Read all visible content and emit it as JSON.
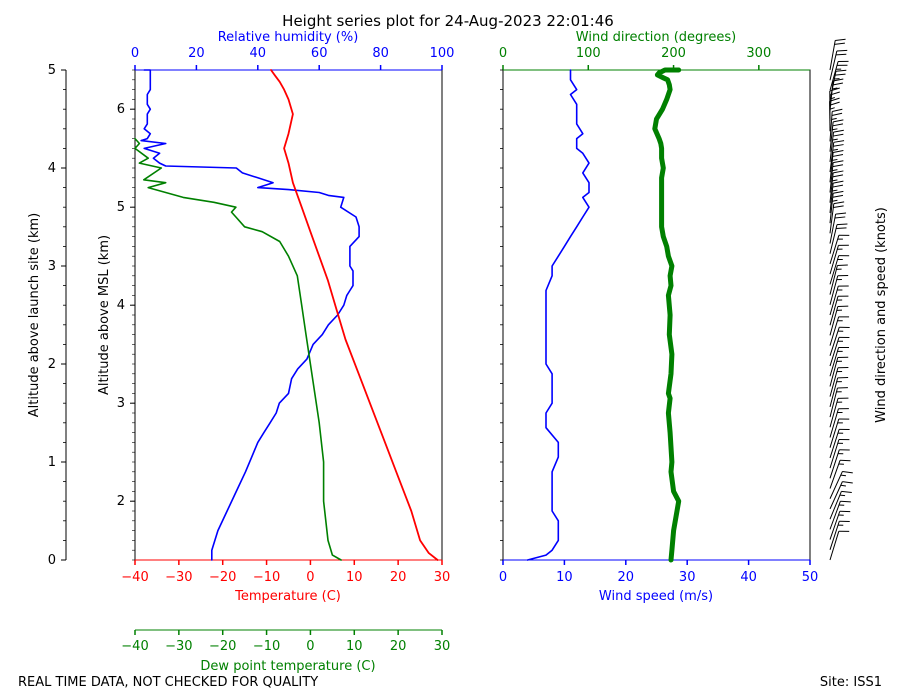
{
  "title": "Height series plot for 24-Aug-2023 22:01:46",
  "footer": {
    "left": "REAL TIME DATA, NOT CHECKED FOR QUALITY",
    "right": "Site: ISS1"
  },
  "colors": {
    "temperature": "#ff0000",
    "dewpoint": "#008000",
    "humidity": "#0000ff",
    "wind_speed": "#0000ff",
    "wind_direction": "#008000",
    "barbs": "#000000"
  },
  "chart_data": [
    {
      "type": "line",
      "panel": "thermo",
      "axes": {
        "left_outer": {
          "label": "Altitude above launch site (km)",
          "range": [
            0,
            5
          ],
          "ticks": [
            "0",
            "1",
            "2",
            "3",
            "4",
            "5"
          ]
        },
        "left_inner": {
          "label": "Altitude above MSL (km)",
          "ticks": [
            "2",
            "3",
            "4",
            "5",
            "6"
          ],
          "tick_values": [
            2,
            3,
            4,
            5,
            6
          ],
          "offset_km": 1.4
        },
        "bottom": {
          "label": "Temperature (C)",
          "range": [
            -40,
            30
          ],
          "ticks": [
            "−40",
            "−30",
            "−20",
            "−10",
            "0",
            "10",
            "20",
            "30"
          ]
        },
        "bottom2": {
          "label": "Dew point temperature (C)",
          "range": [
            -40,
            30
          ],
          "ticks": [
            "−40",
            "−30",
            "−20",
            "−10",
            "0",
            "10",
            "20",
            "30"
          ]
        },
        "top": {
          "label": "Relative humidity (%)",
          "range": [
            0,
            100
          ],
          "ticks": [
            "0",
            "20",
            "40",
            "60",
            "80",
            "100"
          ]
        }
      },
      "series": [
        {
          "key": "temperature",
          "x": [
            29,
            27,
            25,
            23,
            20,
            17,
            14,
            11,
            8,
            6,
            4,
            2,
            0,
            -2,
            -4,
            -5,
            -6,
            -5,
            -4,
            -5,
            -6,
            -7,
            -8,
            -9
          ],
          "y": [
            0,
            0.07,
            0.2,
            0.5,
            0.85,
            1.2,
            1.55,
            1.9,
            2.25,
            2.55,
            2.85,
            3.1,
            3.35,
            3.6,
            3.85,
            4.05,
            4.2,
            4.35,
            4.55,
            4.7,
            4.8,
            4.88,
            4.94,
            5.0
          ]
        },
        {
          "key": "dewpoint",
          "x": [
            7,
            5,
            4,
            3,
            3,
            2,
            1,
            0,
            -1,
            -2,
            -3,
            -5,
            -7,
            -11,
            -15,
            -17,
            -18,
            -17,
            -22,
            -29,
            -37,
            -33,
            -38,
            -34,
            -39,
            -37,
            -40,
            -39,
            -40
          ],
          "y": [
            0,
            0.05,
            0.2,
            0.6,
            1.0,
            1.4,
            1.7,
            2.0,
            2.3,
            2.6,
            2.9,
            3.1,
            3.25,
            3.35,
            3.4,
            3.5,
            3.55,
            3.6,
            3.65,
            3.7,
            3.8,
            3.85,
            3.88,
            4.0,
            4.05,
            4.1,
            4.2,
            4.25,
            4.3
          ]
        },
        {
          "key": "humidity",
          "x": [
            25,
            25,
            27,
            30,
            33,
            36,
            38,
            40,
            42,
            44,
            46,
            47,
            50,
            51,
            53,
            56,
            58,
            61,
            63,
            66,
            68,
            69,
            70,
            71,
            71,
            71,
            70,
            70,
            70,
            73,
            73,
            72,
            67,
            68,
            63,
            60,
            50,
            40,
            45,
            40,
            35,
            33,
            10,
            8,
            6,
            8,
            3,
            10,
            2,
            4,
            5,
            3,
            4,
            4,
            4,
            5,
            4,
            4,
            4,
            5,
            5,
            5,
            5,
            5,
            4,
            4,
            3,
            4,
            5,
            5,
            5,
            5,
            4,
            4,
            4,
            4
          ],
          "y": [
            0,
            0.1,
            0.3,
            0.5,
            0.7,
            0.9,
            1.05,
            1.2,
            1.3,
            1.4,
            1.5,
            1.6,
            1.7,
            1.85,
            1.95,
            2.05,
            2.2,
            2.3,
            2.4,
            2.5,
            2.6,
            2.7,
            2.75,
            2.8,
            2.9,
            2.95,
            3.0,
            3.1,
            3.2,
            3.3,
            3.4,
            3.5,
            3.6,
            3.7,
            3.72,
            3.75,
            3.78,
            3.8,
            3.85,
            3.9,
            3.95,
            4.0,
            4.02,
            4.05,
            4.1,
            4.15,
            4.2,
            4.25,
            4.28,
            4.3,
            4.35,
            4.4,
            4.45,
            4.5,
            4.55,
            4.6,
            4.65,
            4.7,
            4.75,
            4.8,
            4.85,
            4.9,
            4.95,
            5.0,
            5.0,
            5.0,
            5.0,
            5.0,
            5.0,
            5.0,
            5.0,
            5.0,
            5.0,
            5.0,
            5.0,
            5.0
          ]
        }
      ]
    },
    {
      "type": "line",
      "panel": "wind",
      "axes": {
        "left": {
          "range": [
            0,
            5
          ]
        },
        "bottom": {
          "label": "Wind speed (m/s)",
          "range": [
            0,
            50
          ],
          "ticks": [
            "0",
            "10",
            "20",
            "30",
            "40",
            "50"
          ]
        },
        "top": {
          "label": "Wind direction (degrees)",
          "range": [
            0,
            360
          ],
          "ticks": [
            "0",
            "100",
            "200",
            "300"
          ]
        },
        "right": {
          "label": "Wind direction and speed (knots)"
        }
      },
      "series": [
        {
          "key": "wind_speed",
          "x": [
            4,
            7,
            8,
            9,
            9,
            9,
            8,
            8,
            8,
            8,
            9,
            9,
            7,
            7,
            8,
            8,
            8,
            7,
            7,
            7,
            7,
            7,
            7,
            7,
            8,
            8,
            9,
            10,
            11,
            12,
            13,
            14,
            13,
            14,
            14,
            13,
            14,
            13,
            12,
            12,
            13,
            12,
            12,
            12,
            12,
            11,
            12,
            11,
            11,
            11
          ],
          "y": [
            0,
            0.05,
            0.1,
            0.2,
            0.3,
            0.4,
            0.5,
            0.6,
            0.75,
            0.9,
            1.05,
            1.2,
            1.35,
            1.5,
            1.6,
            1.75,
            1.9,
            2.0,
            2.1,
            2.25,
            2.4,
            2.5,
            2.6,
            2.75,
            2.9,
            3.0,
            3.1,
            3.2,
            3.3,
            3.4,
            3.5,
            3.6,
            3.7,
            3.75,
            3.85,
            3.95,
            4.05,
            4.15,
            4.2,
            4.3,
            4.35,
            4.45,
            4.5,
            4.6,
            4.65,
            4.75,
            4.8,
            4.9,
            4.95,
            5.0
          ]
        },
        {
          "key": "wind_direction",
          "x": [
            197,
            198,
            200,
            206,
            200,
            197,
            198,
            196,
            194,
            196,
            194,
            197,
            198,
            195,
            196,
            194,
            197,
            196,
            198,
            194,
            192,
            188,
            186,
            186,
            186,
            186,
            186,
            186,
            188,
            186,
            186,
            186,
            185,
            183,
            178,
            180,
            187,
            192,
            196,
            195,
            193,
            188,
            181,
            183,
            190,
            199,
            203,
            205,
            206,
            206
          ],
          "y": [
            0,
            0.1,
            0.3,
            0.6,
            0.7,
            0.9,
            1.0,
            1.3,
            1.5,
            1.65,
            1.7,
            1.9,
            2.1,
            2.3,
            2.5,
            2.7,
            2.8,
            2.9,
            3.0,
            3.1,
            3.2,
            3.3,
            3.4,
            3.5,
            3.6,
            3.7,
            3.8,
            3.9,
            4.0,
            4.1,
            4.15,
            4.2,
            4.25,
            4.3,
            4.4,
            4.5,
            4.6,
            4.7,
            4.8,
            4.85,
            4.9,
            4.92,
            4.95,
            4.97,
            5.0,
            5.0,
            5.0,
            5.0,
            5.0,
            5.0
          ]
        }
      ]
    }
  ]
}
